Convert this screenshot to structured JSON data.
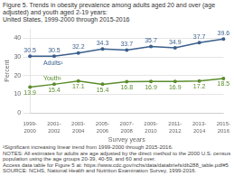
{
  "chart_data": {
    "type": "line",
    "title": "Figure 5. Trends in obesity prevalence among adults aged 20 and over (age adjusted) and youth aged 2-19 years:",
    "subtitle": "United States, 1999-2000 through 2015-2016",
    "categories": [
      "1999-\n2000",
      "2001-\n2002",
      "2003-\n2004",
      "2005-\n2006",
      "2007-\n2008",
      "2009-\n2010",
      "2011-\n2012",
      "2013-\n2014",
      "2015-\n2016"
    ],
    "series": [
      {
        "name": "Adults¹",
        "color": "#3a5f8c",
        "marker": "circle",
        "values": [
          30.5,
          30.5,
          32.2,
          34.3,
          33.7,
          35.7,
          34.9,
          37.7,
          39.6
        ]
      },
      {
        "name": "Youth¹",
        "color": "#5a8c2c",
        "marker": "circle",
        "values": [
          13.9,
          15.4,
          17.1,
          15.4,
          16.8,
          16.9,
          16.9,
          17.2,
          18.5
        ]
      }
    ],
    "xlabel": "Survey years",
    "ylabel": "Percent",
    "ylim": [
      0,
      45
    ],
    "yticks": [
      0,
      10,
      20,
      30,
      40
    ],
    "grid": true,
    "data_labels": true,
    "footnotes": [
      "¹Significant increasing linear trend from 1999-2000 through 2015-2016.",
      "NOTES: All estimates for adults are age adjusted by the direct method to the 2000 U.S. census population using the age groups 20-39, 40-59, and 60 and over.",
      "Access data table for Figure 5 at: https://www.cdc.gov/nchs/data/databriefs/db288_table.pdf#5",
      "SOURCE: NCHS, National Health and Nutrition Examination Survey, 1999-2016."
    ]
  }
}
